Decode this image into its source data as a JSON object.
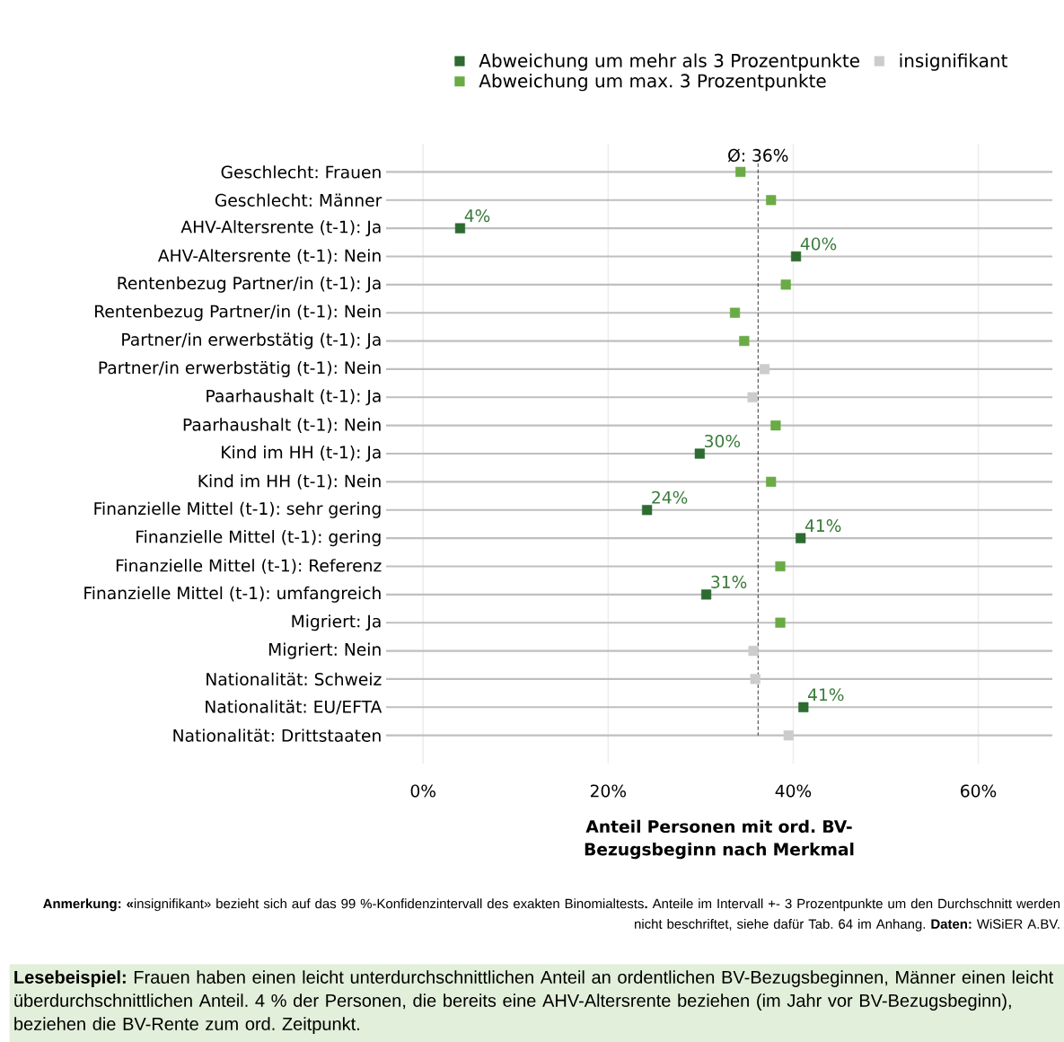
{
  "chart_data": {
    "type": "scatter",
    "orientation": "horizontal",
    "marker": "square",
    "grid": true,
    "legend": "top",
    "categories": [
      "Geschlecht: Frauen",
      "Geschlecht: Männer",
      "AHV-Altersrente (t-1): Ja",
      "AHV-Altersrente (t-1): Nein",
      "Rentenbezug Partner/in  (t-1): Ja",
      "Rentenbezug Partner/in (t-1): Nein",
      "Partner/in erwerbstätig (t-1): Ja",
      "Partner/in erwerbstätig (t-1): Nein",
      "Paarhaushalt (t-1): Ja",
      "Paarhaushalt (t-1): Nein",
      "Kind im HH (t-1): Ja",
      "Kind im HH (t-1): Nein",
      "Finanzielle Mittel (t-1): sehr gering",
      "Finanzielle Mittel (t-1): gering",
      "Finanzielle Mittel (t-1): Referenz",
      "Finanzielle Mittel (t-1): umfangreich",
      "Migriert: Ja",
      "Migriert: Nein",
      "Nationalität: Schweiz",
      "Nationalität: EU/EFTA",
      "Nationalität: Drittstaaten"
    ],
    "series": [
      {
        "name": "Abweichung um mehr als 3 Prozentpunkte",
        "color": "#2e6b30",
        "values": [
          null,
          null,
          4.0,
          40.3,
          null,
          null,
          null,
          null,
          null,
          null,
          29.9,
          null,
          24.2,
          40.8,
          null,
          30.6,
          null,
          null,
          null,
          41.1,
          null
        ],
        "value_labels": [
          null,
          null,
          "4%",
          "40%",
          null,
          null,
          null,
          null,
          null,
          null,
          "30%",
          null,
          "24%",
          "41%",
          null,
          "31%",
          null,
          null,
          null,
          "41%",
          null
        ]
      },
      {
        "name": "insignifikant",
        "color": "#cccccc",
        "values": [
          null,
          null,
          null,
          null,
          null,
          null,
          null,
          36.9,
          35.6,
          null,
          null,
          null,
          null,
          null,
          null,
          null,
          null,
          35.7,
          35.9,
          null,
          39.5
        ]
      },
      {
        "name": "Abweichung um max. 3 Prozentpunkte",
        "color": "#6aab45",
        "values": [
          34.3,
          37.6,
          null,
          null,
          39.2,
          33.7,
          34.7,
          null,
          null,
          38.1,
          null,
          37.6,
          null,
          null,
          38.6,
          null,
          38.6,
          null,
          null,
          null,
          null
        ]
      }
    ],
    "xlim": [
      -4,
      68
    ],
    "xticks": [
      {
        "value": 0,
        "label": "0%"
      },
      {
        "value": 20,
        "label": "20%"
      },
      {
        "value": 40,
        "label": "40%"
      },
      {
        "value": 60,
        "label": "60%"
      }
    ],
    "xlabel": "Anteil Personen mit ord. BV-Bezugsbeginn nach Merkmal",
    "ref_lines": [
      {
        "axis": "x",
        "value": 36.2,
        "label": "Ø: 36%",
        "line_style": "dashed"
      }
    ],
    "annotations": [
      "**Anmerkung: «**insignifikant» bezieht sich auf das 99 %-Konfidenzintervall des exakten Binomialtests**.** Anteile im Intervall +- 3 Prozentpunkte um den Durchschnitt werden nicht beschriftet, siehe dafür Tab. 64 im Anhang. **Daten:** WiSiER A.BV.",
      "**Lesebeispiel:** Frauen haben einen leicht unterdurchschnittlichen Anteil an ordentlichen BV-Bezugsbeginnen, Männer einen leicht überdurchschnittlichen Anteil. 4 % der Personen, die bereits eine AHV-Altersrente beziehen (im Jahr vor BV-Bezugsbeginn), beziehen die BV-Rente zum ord. Zeitpunkt."
    ]
  }
}
